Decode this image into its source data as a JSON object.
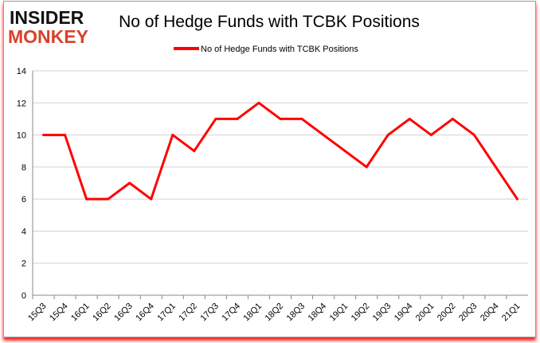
{
  "logo": {
    "line1": "INSIDER",
    "line2": "MONKEY"
  },
  "chart_data": {
    "type": "line",
    "title": "No of Hedge Funds with TCBK Positions",
    "categories": [
      "15Q3",
      "15Q4",
      "16Q1",
      "16Q2",
      "16Q3",
      "16Q4",
      "17Q1",
      "17Q2",
      "17Q3",
      "17Q4",
      "18Q1",
      "18Q2",
      "18Q3",
      "18Q4",
      "19Q1",
      "19Q2",
      "19Q3",
      "19Q4",
      "20Q1",
      "20Q2",
      "20Q3",
      "20Q4",
      "21Q1"
    ],
    "series": [
      {
        "name": "No of Hedge Funds with TCBK Positions",
        "color": "#ff0000",
        "values": [
          10,
          10,
          6,
          6,
          7,
          6,
          10,
          9,
          11,
          11,
          12,
          11,
          11,
          10,
          9,
          8,
          10,
          11,
          10,
          11,
          10,
          8,
          6
        ]
      }
    ],
    "ylim": [
      0,
      14
    ],
    "yticks": [
      0,
      2,
      4,
      6,
      8,
      10,
      12,
      14
    ],
    "grid": true,
    "legend": "top"
  }
}
